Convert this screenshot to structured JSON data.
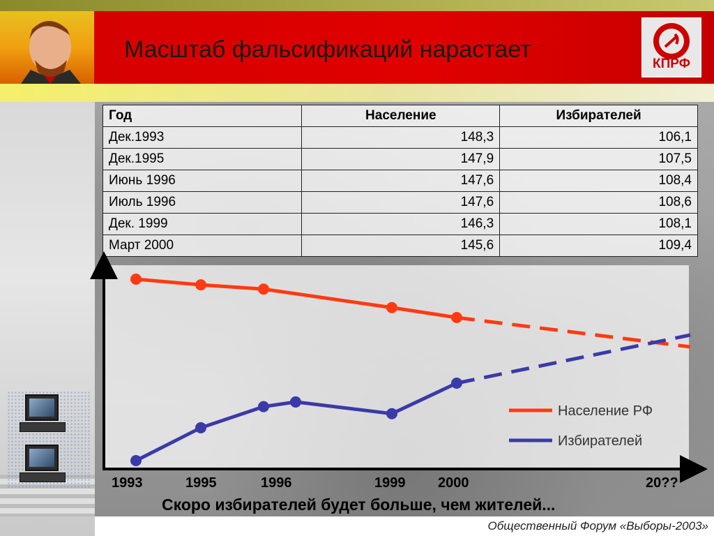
{
  "header": {
    "title": "Масштаб фальсификаций нарастает",
    "logo_text": "КПРФ"
  },
  "table": {
    "headers": [
      "Год",
      "Население",
      "Избирателей"
    ],
    "rows": [
      [
        "Дек.1993",
        "148,3",
        "106,1"
      ],
      [
        "Дек.1995",
        "147,9",
        "107,5"
      ],
      [
        "Июнь 1996",
        "147,6",
        "108,4"
      ],
      [
        "Июль 1996",
        "147,6",
        "108,6"
      ],
      [
        "Дек. 1999",
        "146,3",
        "108,1"
      ],
      [
        "Март 2000",
        "145,6",
        "109,4"
      ]
    ]
  },
  "chart_data": {
    "type": "line",
    "x_ticks": [
      "1993",
      "1995",
      "1996",
      "1999",
      "2000",
      "20??"
    ],
    "series": [
      {
        "name": "Население РФ",
        "color": "#ff3a12",
        "x": [
          "Дек.1993",
          "Дек.1995",
          "Июнь 1996",
          "Дек. 1999",
          "Март 2000"
        ],
        "values": [
          148.3,
          147.9,
          147.6,
          146.3,
          145.6
        ],
        "extrapolated": true
      },
      {
        "name": "Избирателей",
        "color": "#3a3aa8",
        "x": [
          "Дек.1993",
          "Дек.1995",
          "Июнь 1996",
          "Июль 1996",
          "Дек. 1999",
          "Март 2000"
        ],
        "values": [
          106.1,
          107.5,
          108.4,
          108.6,
          108.1,
          109.4
        ],
        "extrapolated": true
      }
    ],
    "legend_position": "right",
    "grid": false
  },
  "slogan": "Скоро избирателей будет больше, чем жителей...",
  "footer": "Общественный Форум «Выборы-2003»"
}
